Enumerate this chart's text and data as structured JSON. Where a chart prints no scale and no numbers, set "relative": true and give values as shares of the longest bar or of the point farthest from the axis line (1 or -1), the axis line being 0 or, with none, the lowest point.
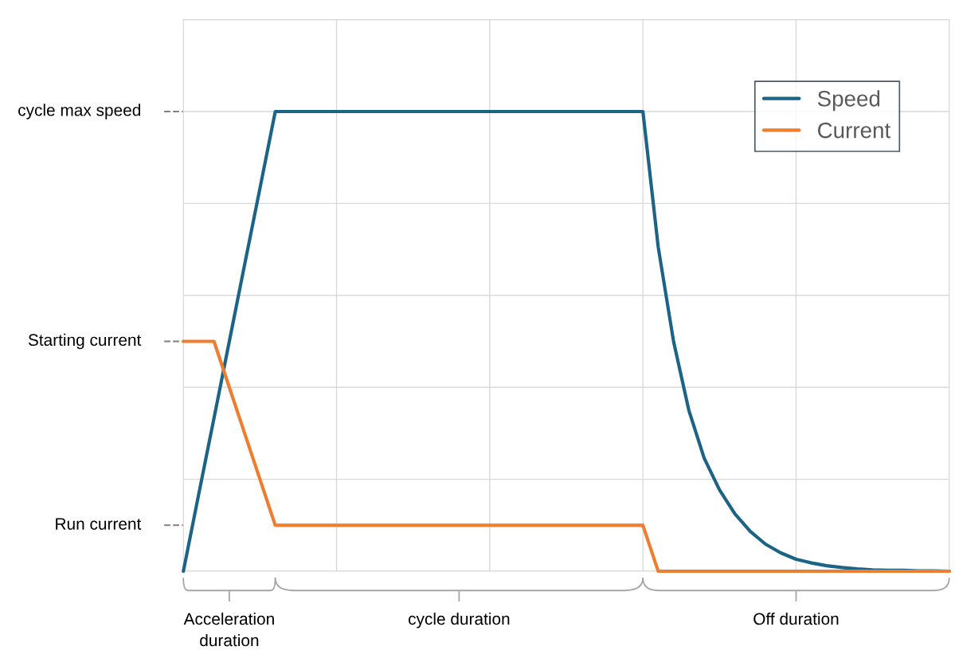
{
  "chart_data": {
    "type": "line",
    "relative": true,
    "categories": [
      null,
      null,
      null,
      null,
      null,
      null,
      null,
      null,
      null,
      null,
      null,
      null,
      null,
      null,
      null,
      null,
      null,
      null,
      null,
      null,
      null,
      null,
      null,
      null,
      null,
      null,
      null,
      null,
      null,
      null,
      null,
      null,
      null,
      null,
      null,
      null,
      null,
      null,
      null,
      null,
      null,
      null,
      null,
      null,
      null,
      null,
      null,
      null,
      null,
      null,
      null
    ],
    "grid": true,
    "legend": "top right",
    "line_style": "solid",
    "series": [
      {
        "name": "Speed",
        "color": "#1d6386",
        "values": [
          0,
          0.167,
          0.333,
          0.5,
          0.667,
          0.833,
          1,
          1,
          1,
          1,
          1,
          1,
          1,
          1,
          1,
          1,
          1,
          1,
          1,
          1,
          1,
          1,
          1,
          1,
          1,
          1,
          1,
          1,
          1,
          1,
          1,
          0.705,
          0.5,
          0.35,
          0.246,
          0.177,
          0.125,
          0.087,
          0.059,
          0.04,
          0.026,
          0.018,
          0.012,
          0.008,
          0.005,
          0.003,
          0.002,
          0.002,
          0.001,
          0.001,
          0
        ]
      },
      {
        "name": "Current",
        "color": "#ed7d31",
        "values": [
          0.5,
          0.5,
          0.5,
          0.4,
          0.3,
          0.2,
          0.1,
          0.1,
          0.1,
          0.1,
          0.1,
          0.1,
          0.1,
          0.1,
          0.1,
          0.1,
          0.1,
          0.1,
          0.1,
          0.1,
          0.1,
          0.1,
          0.1,
          0.1,
          0.1,
          0.1,
          0.1,
          0.1,
          0.1,
          0.1,
          0.1,
          0,
          0,
          0,
          0,
          0,
          0,
          0,
          0,
          0,
          0,
          0,
          0,
          0,
          0,
          0,
          0,
          0,
          0,
          0,
          0
        ]
      }
    ],
    "ref_lines": [
      {
        "axis": "y",
        "value": 1,
        "label": "cycle max speed",
        "color": "#7f7f7f",
        "line_style": "dashed"
      },
      {
        "axis": "y",
        "value": 0.5,
        "label": "Starting current",
        "color": "#7f7f7f",
        "line_style": "dashed"
      },
      {
        "axis": "y",
        "value": 0.1,
        "label": "Run current",
        "color": "#7f7f7f",
        "line_style": "dashed"
      }
    ],
    "annotations": [
      "Acceleration\nduration",
      "cycle duration",
      "Off duration"
    ]
  }
}
